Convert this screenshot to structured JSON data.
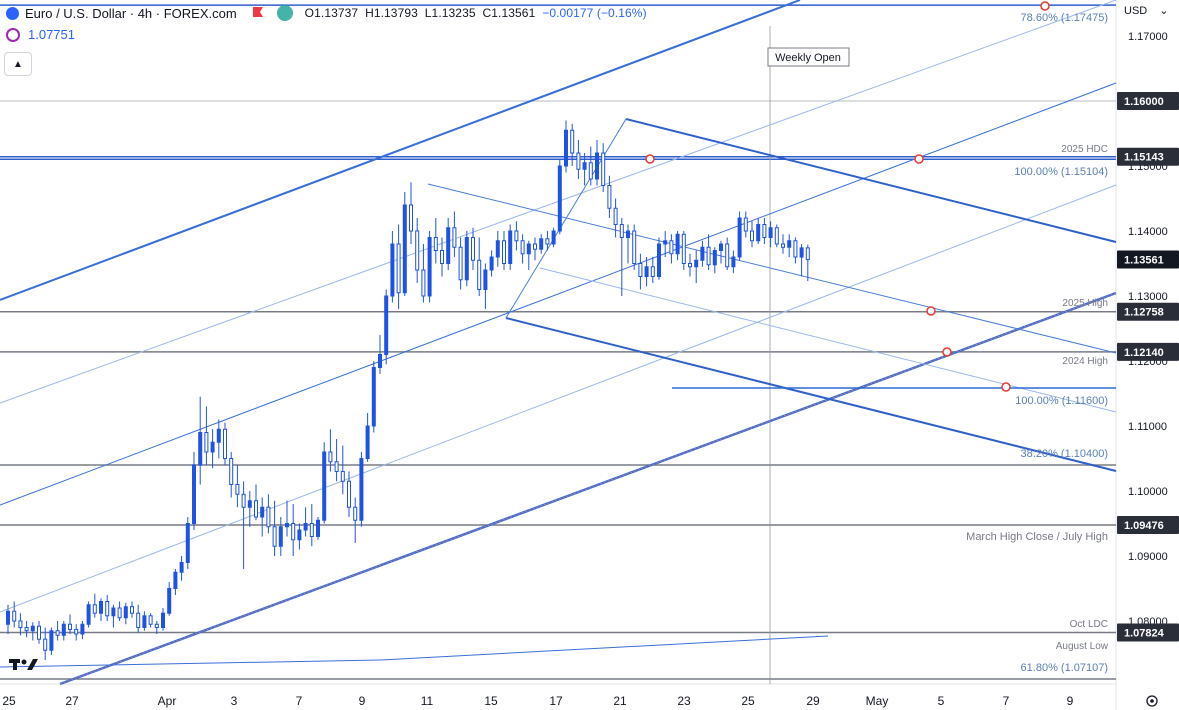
{
  "header": {
    "title": "Euro / U.S. Dollar · 4h · FOREX.com",
    "open": "O1.13737",
    "high": "H1.13793",
    "low": "L1.13235",
    "close": "C1.13561",
    "change": "−0.00177 (−0.16%)"
  },
  "sub_indicator": {
    "value": "1.07751"
  },
  "axis": {
    "currency": "USD",
    "chevron": "⌄"
  },
  "colors": {
    "candle": "#1e53e5",
    "level_line": "#787b86",
    "channel": "#2f6bd6",
    "thin_channel": "#5b8fd9",
    "trend_purple": "#e040fb",
    "label_bg": "#2a2e39",
    "last_price_bg": "#131722"
  },
  "chart_data": {
    "type": "candlestick",
    "symbol": "EURUSD",
    "interval": "4h",
    "title": "Euro / U.S. Dollar · 4h · FOREX.com",
    "ylim": [
      1.0705,
      1.1775
    ],
    "y_ticks": [
      "1.17000",
      "1.16000",
      "1.15000",
      "1.14000",
      "1.13000",
      "1.12000",
      "1.11000",
      "1.10000",
      "1.09000",
      "1.08000"
    ],
    "x_ticks": [
      "25",
      "27",
      "Apr",
      "3",
      "7",
      "9",
      "11",
      "15",
      "17",
      "21",
      "23",
      "25",
      "29",
      "May",
      "5",
      "7",
      "9"
    ],
    "price_labels": [
      {
        "text": "1.16000",
        "value": 1.16
      },
      {
        "text": "1.15143",
        "value": 1.15143
      },
      {
        "text": "1.13561",
        "value": 1.13561
      },
      {
        "text": "1.12758",
        "value": 1.12758
      },
      {
        "text": "1.12140",
        "value": 1.1214
      },
      {
        "text": "1.09476",
        "value": 1.09476
      },
      {
        "text": "1.07824",
        "value": 1.07824
      }
    ],
    "levels": [
      {
        "name": "2025 HDC",
        "value": 1.15143
      },
      {
        "name": "100.00% (1.15104)",
        "value": 1.15104
      },
      {
        "name": "2025 High",
        "value": 1.12758
      },
      {
        "name": "2024 High",
        "value": 1.1214
      },
      {
        "name": "100.00% (1.11600)",
        "value": 1.116
      },
      {
        "name": "38.20% (1.10400)",
        "value": 1.104
      },
      {
        "name": "March High Close / July High",
        "value": 1.09476
      },
      {
        "name": "Oct LDC",
        "value": 1.07824
      },
      {
        "name": "August Low",
        "value": 1.07824
      },
      {
        "name": "61.80% (1.07107)",
        "value": 1.07107
      },
      {
        "name": "78.60% (1.17475)",
        "value": 1.17475
      }
    ],
    "annotations": [
      "Weekly Open"
    ],
    "last_close": 1.13561,
    "candles": [
      [
        1.0795,
        1.0825,
        1.078,
        1.0815
      ],
      [
        1.0815,
        1.083,
        1.079,
        1.08
      ],
      [
        1.08,
        1.0812,
        1.0778,
        1.079
      ],
      [
        1.079,
        1.08,
        1.0775,
        1.0785
      ],
      [
        1.0785,
        1.0798,
        1.077,
        1.0792
      ],
      [
        1.0792,
        1.08,
        1.0765,
        1.0772
      ],
      [
        1.0772,
        1.079,
        1.074,
        1.0755
      ],
      [
        1.0755,
        1.079,
        1.0748,
        1.0785
      ],
      [
        1.0785,
        1.08,
        1.077,
        1.0778
      ],
      [
        1.0778,
        1.08,
        1.077,
        1.0795
      ],
      [
        1.0795,
        1.081,
        1.078,
        1.0787
      ],
      [
        1.0787,
        1.0795,
        1.077,
        1.078
      ],
      [
        1.078,
        1.08,
        1.0772,
        1.0795
      ],
      [
        1.0795,
        1.083,
        1.079,
        1.0825
      ],
      [
        1.0825,
        1.0842,
        1.0805,
        1.0812
      ],
      [
        1.0812,
        1.0835,
        1.08,
        1.083
      ],
      [
        1.083,
        1.084,
        1.08,
        1.0808
      ],
      [
        1.0808,
        1.0825,
        1.079,
        1.082
      ],
      [
        1.082,
        1.083,
        1.08,
        1.0805
      ],
      [
        1.0805,
        1.0828,
        1.0795,
        1.0822
      ],
      [
        1.0822,
        1.083,
        1.0805,
        1.0812
      ],
      [
        1.0812,
        1.0825,
        1.0782,
        1.079
      ],
      [
        1.079,
        1.0815,
        1.0785,
        1.0808
      ],
      [
        1.0808,
        1.0812,
        1.079,
        1.0795
      ],
      [
        1.0795,
        1.08,
        1.078,
        1.079
      ],
      [
        1.079,
        1.082,
        1.0785,
        1.0812
      ],
      [
        1.0812,
        1.086,
        1.0808,
        1.085
      ],
      [
        1.085,
        1.088,
        1.084,
        1.0875
      ],
      [
        1.0875,
        1.09,
        1.0862,
        1.089
      ],
      [
        1.089,
        1.096,
        1.088,
        1.095
      ],
      [
        1.095,
        1.106,
        1.094,
        1.104
      ],
      [
        1.104,
        1.1145,
        1.101,
        1.109
      ],
      [
        1.109,
        1.113,
        1.104,
        1.106
      ],
      [
        1.106,
        1.1095,
        1.1035,
        1.1075
      ],
      [
        1.1075,
        1.111,
        1.105,
        1.1095
      ],
      [
        1.1095,
        1.1105,
        1.104,
        1.105
      ],
      [
        1.105,
        1.106,
        1.099,
        1.101
      ],
      [
        1.101,
        1.104,
        1.0975,
        1.0995
      ],
      [
        1.0995,
        1.1015,
        1.088,
        1.0975
      ],
      [
        1.0975,
        1.1,
        1.0945,
        1.0985
      ],
      [
        1.0985,
        1.101,
        1.0955,
        1.096
      ],
      [
        1.096,
        1.099,
        1.093,
        1.0975
      ],
      [
        1.0975,
        1.0995,
        1.0935,
        1.0945
      ],
      [
        1.0945,
        1.0985,
        1.09,
        1.0915
      ],
      [
        1.0915,
        1.096,
        1.09,
        1.0945
      ],
      [
        1.0945,
        1.0985,
        1.093,
        1.095
      ],
      [
        1.095,
        1.098,
        1.09,
        1.0925
      ],
      [
        1.0925,
        1.095,
        1.091,
        1.094
      ],
      [
        1.094,
        1.0975,
        1.093,
        1.095
      ],
      [
        1.095,
        1.098,
        1.0915,
        1.093
      ],
      [
        1.093,
        1.096,
        1.0925,
        1.0955
      ],
      [
        1.0955,
        1.1075,
        1.095,
        1.106
      ],
      [
        1.106,
        1.1095,
        1.103,
        1.1045
      ],
      [
        1.1045,
        1.108,
        1.1015,
        1.103
      ],
      [
        1.103,
        1.107,
        1.0995,
        1.1015
      ],
      [
        1.1015,
        1.103,
        1.096,
        1.0975
      ],
      [
        1.0975,
        1.099,
        1.092,
        1.0955
      ],
      [
        1.0955,
        1.106,
        1.0945,
        1.105
      ],
      [
        1.105,
        1.112,
        1.1045,
        1.11
      ],
      [
        1.11,
        1.12,
        1.109,
        1.119
      ],
      [
        1.119,
        1.124,
        1.118,
        1.121
      ],
      [
        1.121,
        1.131,
        1.1195,
        1.13
      ],
      [
        1.13,
        1.14,
        1.129,
        1.138
      ],
      [
        1.138,
        1.141,
        1.128,
        1.1305
      ],
      [
        1.1305,
        1.146,
        1.13,
        1.144
      ],
      [
        1.144,
        1.1475,
        1.138,
        1.14
      ],
      [
        1.14,
        1.142,
        1.132,
        1.134
      ],
      [
        1.134,
        1.138,
        1.129,
        1.13
      ],
      [
        1.13,
        1.14,
        1.129,
        1.139
      ],
      [
        1.139,
        1.142,
        1.135,
        1.137
      ],
      [
        1.137,
        1.139,
        1.133,
        1.135
      ],
      [
        1.135,
        1.142,
        1.134,
        1.1405
      ],
      [
        1.1405,
        1.143,
        1.136,
        1.1375
      ],
      [
        1.1375,
        1.139,
        1.131,
        1.1325
      ],
      [
        1.1325,
        1.14,
        1.1315,
        1.139
      ],
      [
        1.139,
        1.1405,
        1.134,
        1.1355
      ],
      [
        1.1355,
        1.139,
        1.13,
        1.131
      ],
      [
        1.131,
        1.135,
        1.128,
        1.134
      ],
      [
        1.134,
        1.137,
        1.133,
        1.136
      ],
      [
        1.136,
        1.14,
        1.1345,
        1.1385
      ],
      [
        1.1385,
        1.14,
        1.134,
        1.135
      ],
      [
        1.135,
        1.141,
        1.134,
        1.14
      ],
      [
        1.14,
        1.1415,
        1.137,
        1.1385
      ],
      [
        1.1385,
        1.1395,
        1.135,
        1.1365
      ],
      [
        1.1365,
        1.1385,
        1.134,
        1.138
      ],
      [
        1.138,
        1.139,
        1.1355,
        1.1372
      ],
      [
        1.1372,
        1.1395,
        1.1365,
        1.1388
      ],
      [
        1.1388,
        1.14,
        1.137,
        1.138
      ],
      [
        1.138,
        1.1405,
        1.1375,
        1.14
      ],
      [
        1.14,
        1.151,
        1.1395,
        1.15
      ],
      [
        1.15,
        1.157,
        1.149,
        1.1555
      ],
      [
        1.1555,
        1.1565,
        1.15,
        1.152
      ],
      [
        1.152,
        1.154,
        1.148,
        1.1495
      ],
      [
        1.1495,
        1.152,
        1.147,
        1.1505
      ],
      [
        1.1505,
        1.153,
        1.147,
        1.148
      ],
      [
        1.148,
        1.154,
        1.147,
        1.152
      ],
      [
        1.152,
        1.1535,
        1.146,
        1.147
      ],
      [
        1.147,
        1.1485,
        1.142,
        1.1435
      ],
      [
        1.1435,
        1.145,
        1.139,
        1.141
      ],
      [
        1.141,
        1.142,
        1.13,
        1.139
      ],
      [
        1.139,
        1.141,
        1.135,
        1.14
      ],
      [
        1.14,
        1.141,
        1.134,
        1.135
      ],
      [
        1.135,
        1.1365,
        1.131,
        1.133
      ],
      [
        1.133,
        1.136,
        1.1315,
        1.1345
      ],
      [
        1.1345,
        1.136,
        1.132,
        1.133
      ],
      [
        1.133,
        1.139,
        1.1325,
        1.138
      ],
      [
        1.138,
        1.14,
        1.136,
        1.1385
      ],
      [
        1.1385,
        1.1395,
        1.135,
        1.1365
      ],
      [
        1.1365,
        1.14,
        1.1355,
        1.1395
      ],
      [
        1.1395,
        1.14,
        1.134,
        1.135
      ],
      [
        1.135,
        1.1365,
        1.133,
        1.1345
      ],
      [
        1.1345,
        1.137,
        1.132,
        1.1355
      ],
      [
        1.1355,
        1.1385,
        1.1345,
        1.1375
      ],
      [
        1.1375,
        1.1395,
        1.134,
        1.1348
      ],
      [
        1.1348,
        1.1375,
        1.1335,
        1.137
      ],
      [
        1.137,
        1.1385,
        1.135,
        1.138
      ],
      [
        1.138,
        1.139,
        1.134,
        1.1345
      ],
      [
        1.1345,
        1.137,
        1.1335,
        1.136
      ],
      [
        1.136,
        1.143,
        1.1355,
        1.142
      ],
      [
        1.142,
        1.143,
        1.139,
        1.14
      ],
      [
        1.14,
        1.1415,
        1.1375,
        1.1385
      ],
      [
        1.1385,
        1.142,
        1.138,
        1.141
      ],
      [
        1.141,
        1.142,
        1.138,
        1.139
      ],
      [
        1.139,
        1.1415,
        1.1375,
        1.1405
      ],
      [
        1.1405,
        1.141,
        1.1375,
        1.138
      ],
      [
        1.138,
        1.1395,
        1.1365,
        1.1375
      ],
      [
        1.1375,
        1.1395,
        1.136,
        1.1385
      ],
      [
        1.1385,
        1.139,
        1.135,
        1.136
      ],
      [
        1.136,
        1.138,
        1.133,
        1.1374
      ],
      [
        1.1374,
        1.1379,
        1.1323,
        1.1356
      ]
    ]
  }
}
